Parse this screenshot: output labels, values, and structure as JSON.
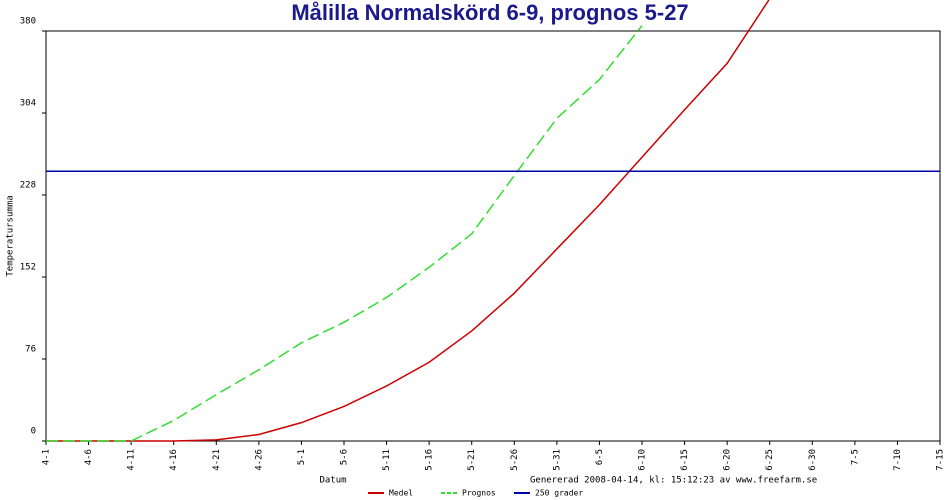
{
  "chart_data": {
    "type": "line",
    "title": "Målilla Normalskörd 6-9, prognos 5-27",
    "y_label": "Temperatursumma",
    "x_label": "Datum",
    "footer": "Genererad 2008-04-14, kl: 15:12:23 av www.freefarm.se",
    "categories": [
      "4-1",
      "4-6",
      "4-11",
      "4-16",
      "4-21",
      "4-26",
      "5-1",
      "5-6",
      "5-11",
      "5-16",
      "5-21",
      "5-26",
      "5-31",
      "6-5",
      "6-10",
      "6-15",
      "6-20",
      "6-25",
      "6-30",
      "7-5",
      "7-10",
      "7-15"
    ],
    "series": [
      {
        "name": "Medel",
        "color": "#cc0000",
        "dashed": false,
        "values": [
          0,
          0,
          0,
          0,
          1,
          6,
          17,
          32,
          51,
          73,
          102,
          137,
          178,
          219,
          263,
          307,
          350,
          410,
          null,
          null,
          null,
          null
        ]
      },
      {
        "name": "Prognos",
        "color": "#33dd33",
        "dashed": true,
        "values": [
          0,
          0,
          0,
          19,
          43,
          66,
          91,
          110,
          133,
          161,
          192,
          246,
          299,
          335,
          385,
          null,
          null,
          null,
          null,
          null,
          null,
          null
        ]
      },
      {
        "name": "250 grader",
        "color": "#0000aa",
        "dashed": false,
        "values": [
          250,
          250,
          250,
          250,
          250,
          250,
          250,
          250,
          250,
          250,
          250,
          250,
          250,
          250,
          250,
          250,
          250,
          250,
          250,
          250,
          250,
          250
        ]
      }
    ],
    "ylim": [
      0,
      380
    ],
    "yticks": [
      0,
      76,
      152,
      228,
      304,
      380
    ],
    "legend": "bottom"
  }
}
